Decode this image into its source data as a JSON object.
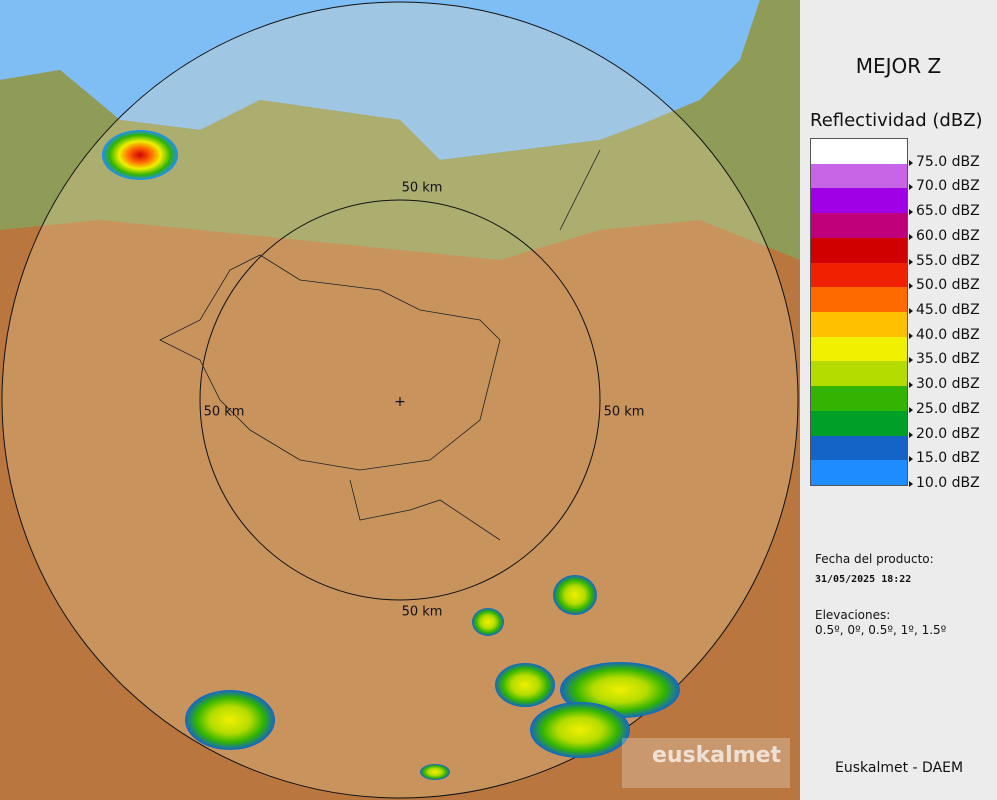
{
  "panel": {
    "title": "MEJOR Z",
    "legend_title": "Reflectividad (dBZ)",
    "legend": [
      {
        "color": "#ffffff",
        "label": "75.0 dBZ"
      },
      {
        "color": "#c864e6",
        "label": "70.0 dBZ"
      },
      {
        "color": "#a000e6",
        "label": "65.0 dBZ"
      },
      {
        "color": "#c0007a",
        "label": "60.0 dBZ"
      },
      {
        "color": "#d00000",
        "label": "55.0 dBZ"
      },
      {
        "color": "#f02000",
        "label": "50.0 dBZ"
      },
      {
        "color": "#ff6a00",
        "label": "45.0 dBZ"
      },
      {
        "color": "#ffc000",
        "label": "40.0 dBZ"
      },
      {
        "color": "#f0f000",
        "label": "35.0 dBZ"
      },
      {
        "color": "#b4dc00",
        "label": "30.0 dBZ"
      },
      {
        "color": "#32b400",
        "label": "25.0 dBZ"
      },
      {
        "color": "#00a028",
        "label": "20.0 dBZ"
      },
      {
        "color": "#1464c8",
        "label": "15.0 dBZ"
      },
      {
        "color": "#1e8cff",
        "label": "10.0 dBZ"
      }
    ],
    "product_date_label": "Fecha del producto:",
    "product_date": "31/05/2025 18:22",
    "elevations_label": "Elevaciones:",
    "elevations": "0.5º, 0º, 0.5º, 1º, 1.5º",
    "credit": "Euskalmet - DAEM"
  },
  "map": {
    "range_labels": [
      "50 km",
      "50 km",
      "50 km",
      "50 km"
    ],
    "watermark": "euskalmet"
  }
}
